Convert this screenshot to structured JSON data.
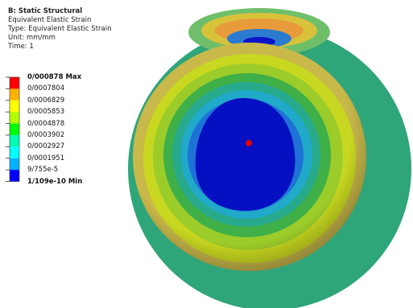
{
  "header": {
    "title": "B: Static Structural",
    "lines": [
      "Equivalent Elastic Strain",
      "Type: Equivalent Elastic Strain",
      "Unit: mm/mm",
      "Time: 1"
    ]
  },
  "legend": {
    "labels": [
      "0/000878 Max",
      "0/0007804",
      "0/0006829",
      "0/0005853",
      "0/0004878",
      "0/0003902",
      "0/0002927",
      "0/0001951",
      "9/755e-5",
      "1/109e-10 Min"
    ],
    "colors": [
      "#ff0000",
      "#ffb200",
      "#ffff00",
      "#b2ff00",
      "#00ff00",
      "#00ffb2",
      "#00ffff",
      "#00b2ff",
      "#0000ff"
    ]
  }
}
